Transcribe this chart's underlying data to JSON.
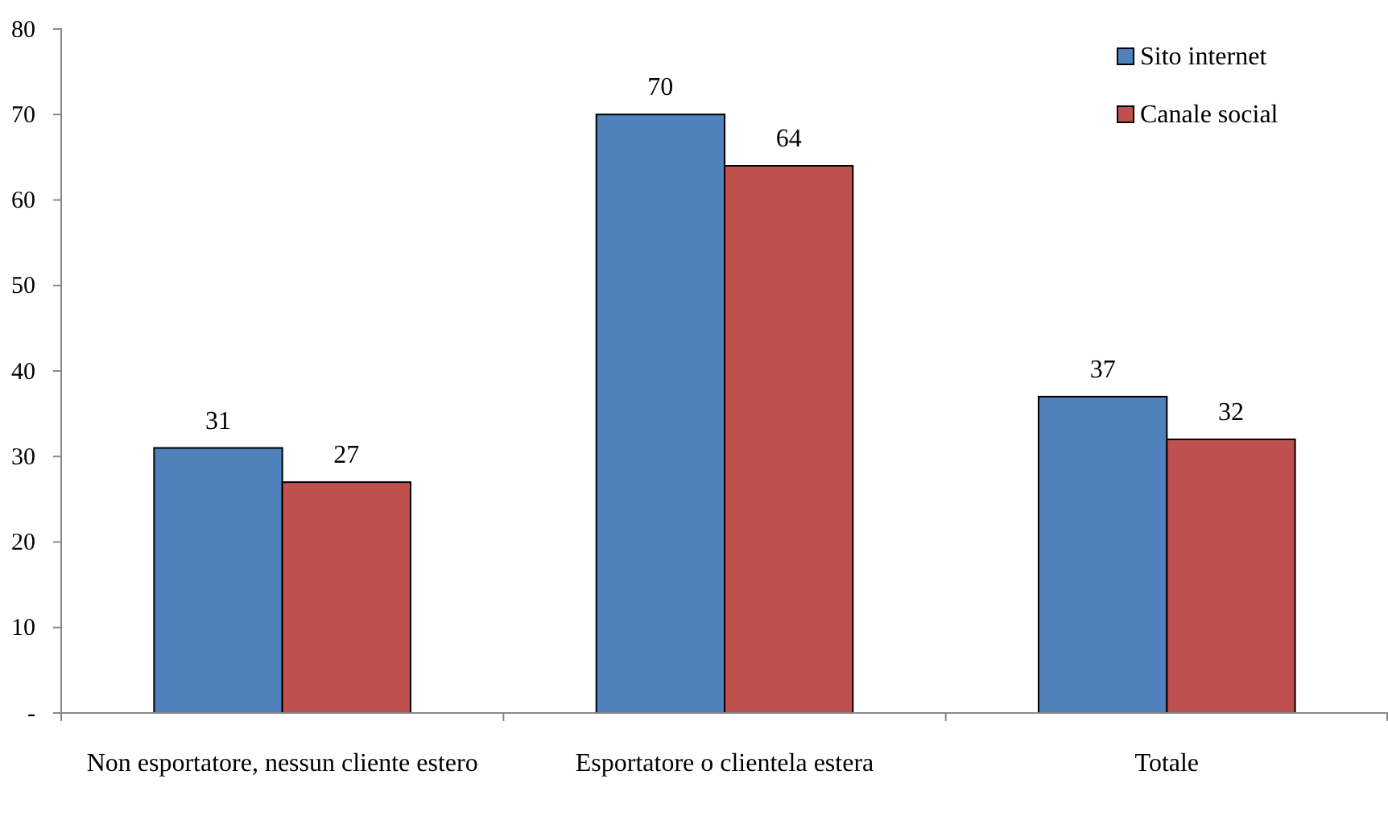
{
  "chart_data": {
    "type": "bar",
    "categories": [
      "Non esportatore, nessun cliente estero",
      "Esportatore o clientela estera",
      "Totale"
    ],
    "series": [
      {
        "name": "Sito internet",
        "color": "#4f81bd",
        "values": [
          31,
          70,
          37
        ]
      },
      {
        "name": "Canale social",
        "color": "#c0504d",
        "values": [
          27,
          64,
          32
        ]
      }
    ],
    "ylim": [
      0,
      80
    ],
    "yticks": [
      {
        "value": 0,
        "label": "-"
      },
      10,
      20,
      30,
      40,
      50,
      60,
      70,
      80
    ],
    "data_labels": true,
    "legend": "top right",
    "grid": false
  }
}
